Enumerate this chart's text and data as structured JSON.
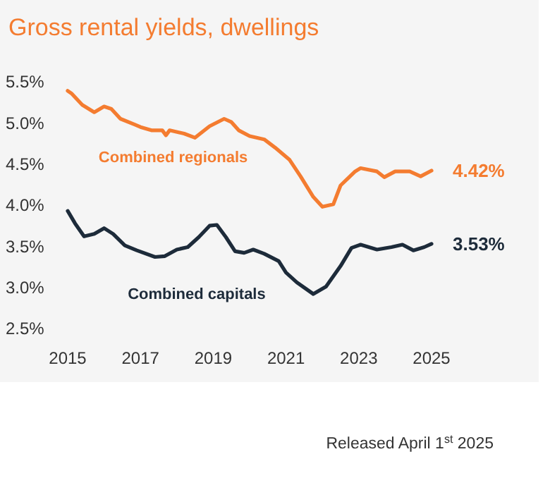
{
  "chart_data": {
    "type": "line",
    "title": "Gross rental yields, dwellings",
    "xlim": [
      2015,
      2025
    ],
    "xticks": [
      2015,
      2017,
      2019,
      2021,
      2023,
      2025
    ],
    "ylim": [
      2.5,
      5.5
    ],
    "yticks": [
      {
        "value": 2.5,
        "label": "2.5%"
      },
      {
        "value": 3.0,
        "label": "3.0%"
      },
      {
        "value": 3.5,
        "label": "3.5%"
      },
      {
        "value": 4.0,
        "label": "4.0%"
      },
      {
        "value": 4.5,
        "label": "4.5%"
      },
      {
        "value": 5.0,
        "label": "5.0%"
      },
      {
        "value": 5.5,
        "label": "5.5%"
      }
    ],
    "grid": false,
    "marker": "none",
    "line_style": "solid",
    "series": [
      {
        "name": "Combined regionals",
        "color": "#f47c30",
        "x": [
          2015.0,
          2015.1,
          2015.4,
          2015.73,
          2016.0,
          2016.2,
          2016.45,
          2016.84,
          2017.0,
          2017.3,
          2017.6,
          2017.7,
          2017.8,
          2018.2,
          2018.5,
          2018.9,
          2019.3,
          2019.5,
          2019.7,
          2020.0,
          2020.4,
          2020.7,
          2021.1,
          2021.4,
          2021.75,
          2022.0,
          2022.3,
          2022.5,
          2022.9,
          2023.05,
          2023.5,
          2023.7,
          2024.0,
          2024.4,
          2024.7,
          2025.0
        ],
        "values": [
          5.39,
          5.36,
          5.22,
          5.13,
          5.2,
          5.17,
          5.05,
          4.98,
          4.95,
          4.91,
          4.91,
          4.85,
          4.91,
          4.87,
          4.82,
          4.96,
          5.05,
          5.01,
          4.91,
          4.84,
          4.8,
          4.7,
          4.55,
          4.35,
          4.1,
          3.98,
          4.01,
          4.24,
          4.41,
          4.45,
          4.41,
          4.34,
          4.41,
          4.41,
          4.35,
          4.42
        ],
        "value_labels": [
          null,
          null,
          null,
          null,
          null,
          null,
          null,
          null,
          null,
          null,
          null,
          null,
          null,
          null,
          null,
          null,
          null,
          null,
          null,
          null,
          null,
          null,
          null,
          null,
          null,
          null,
          null,
          null,
          null,
          null,
          null,
          null,
          null,
          null,
          null,
          "4.42%"
        ]
      },
      {
        "name": "Combined capitals",
        "color": "#1d2b3a",
        "x": [
          2015.0,
          2015.2,
          2015.45,
          2015.73,
          2016.0,
          2016.25,
          2016.57,
          2016.9,
          2017.4,
          2017.67,
          2018.0,
          2018.3,
          2018.6,
          2018.9,
          2019.1,
          2019.35,
          2019.6,
          2019.85,
          2020.1,
          2020.4,
          2020.8,
          2021.0,
          2021.3,
          2021.75,
          2022.1,
          2022.5,
          2022.8,
          2023.05,
          2023.5,
          2023.9,
          2024.2,
          2024.5,
          2024.8,
          2025.0
        ],
        "values": [
          3.93,
          3.78,
          3.62,
          3.65,
          3.72,
          3.65,
          3.51,
          3.45,
          3.37,
          3.38,
          3.46,
          3.49,
          3.61,
          3.75,
          3.76,
          3.61,
          3.44,
          3.42,
          3.46,
          3.41,
          3.32,
          3.18,
          3.06,
          2.92,
          3.01,
          3.26,
          3.48,
          3.52,
          3.46,
          3.49,
          3.52,
          3.45,
          3.49,
          3.53
        ],
        "value_labels": [
          null,
          null,
          null,
          null,
          null,
          null,
          null,
          null,
          null,
          null,
          null,
          null,
          null,
          null,
          null,
          null,
          null,
          null,
          null,
          null,
          null,
          null,
          null,
          null,
          null,
          null,
          null,
          null,
          null,
          null,
          null,
          null,
          null,
          "3.53%"
        ]
      }
    ],
    "annotations": [
      "Released April 1$^{st}$ 2025"
    ]
  }
}
